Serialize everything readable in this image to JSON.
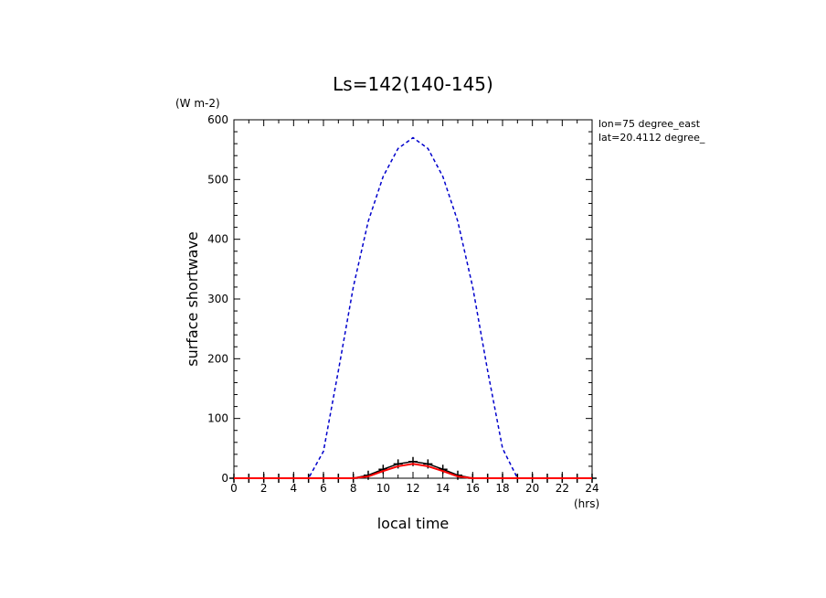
{
  "chart_data": {
    "type": "line",
    "title": "Ls=142(140-145)",
    "xlabel": "local time",
    "xunit": "(hrs)",
    "ylabel": "surface shortwave",
    "yunit": "(W m-2)",
    "annotations": [
      "lon=75 degree_east",
      "lat=20.4112 degree_"
    ],
    "xlim": [
      0,
      24
    ],
    "ylim": [
      0,
      600
    ],
    "xticks": [
      0,
      2,
      4,
      6,
      8,
      10,
      12,
      14,
      16,
      18,
      20,
      22,
      24
    ],
    "yticks": [
      0,
      100,
      200,
      300,
      400,
      500,
      600
    ],
    "grid": false,
    "series": [
      {
        "style": "dashed",
        "color": "#0000cc",
        "x": [
          0,
          1,
          2,
          3,
          4,
          5,
          6,
          7,
          8,
          9,
          10,
          11,
          12,
          13,
          14,
          15,
          16,
          17,
          18,
          19,
          20,
          21,
          22,
          23,
          24
        ],
        "y": [
          0,
          0,
          0,
          0,
          0,
          0,
          45,
          180,
          320,
          430,
          505,
          552,
          570,
          552,
          505,
          430,
          320,
          180,
          50,
          0,
          0,
          0,
          0,
          0,
          0
        ]
      },
      {
        "style": "solid-with-markers",
        "color": "#000000",
        "marker": "plus",
        "x": [
          0,
          1,
          2,
          3,
          4,
          5,
          6,
          7,
          8,
          9,
          10,
          11,
          12,
          13,
          14,
          15,
          16,
          17,
          18,
          19,
          20,
          21,
          22,
          23,
          24
        ],
        "y": [
          0,
          0,
          0,
          0,
          0,
          0,
          0,
          0,
          0,
          5,
          15,
          24,
          28,
          24,
          15,
          5,
          0,
          0,
          0,
          0,
          0,
          0,
          0,
          0,
          0
        ]
      },
      {
        "style": "solid",
        "color": "#ff0000",
        "x": [
          0,
          1,
          2,
          3,
          4,
          5,
          6,
          7,
          8,
          9,
          10,
          11,
          12,
          13,
          14,
          15,
          16,
          17,
          18,
          19,
          20,
          21,
          22,
          23,
          24
        ],
        "y": [
          0,
          0,
          0,
          0,
          0,
          0,
          0,
          0,
          0,
          3,
          12,
          20,
          24,
          20,
          12,
          3,
          0,
          0,
          0,
          0,
          0,
          0,
          0,
          0,
          0
        ]
      }
    ]
  }
}
